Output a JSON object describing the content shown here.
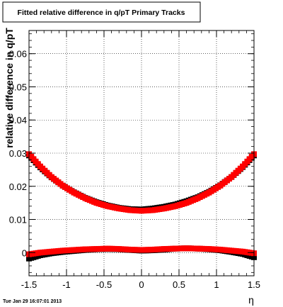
{
  "chart_data": {
    "type": "scatter",
    "title": "Fitted relative difference in q/pT  Primary Tracks",
    "xlabel": "η",
    "ylabel": "relative difference in q/pT",
    "xlim": [
      -1.5,
      1.5
    ],
    "ylim": [
      -0.007,
      0.067
    ],
    "xticks": [
      -1.5,
      -1,
      -0.5,
      0,
      0.5,
      1,
      1.5
    ],
    "xtick_labels": [
      "-1.5",
      "-1",
      "-0.5",
      "0",
      "0.5",
      "1",
      "1.5"
    ],
    "yticks": [
      0,
      0.01,
      0.02,
      0.03,
      0.04,
      0.05,
      0.06
    ],
    "ytick_labels": [
      "0",
      "0.01",
      "0.02",
      "0.03",
      "0.04",
      "0.05",
      "0.06"
    ],
    "grid": true,
    "legend": "none",
    "series": [
      {
        "color": "#000000",
        "marker": "square",
        "x": [
          -1.5,
          -1.35,
          -1.2,
          -1.05,
          -0.9,
          -0.75,
          -0.6,
          -0.45,
          -0.3,
          -0.15,
          0,
          0.15,
          0.3,
          0.45,
          0.6,
          0.75,
          0.9,
          1.05,
          1.2,
          1.35,
          1.5
        ],
        "y": [
          0.0293,
          0.0257,
          0.0227,
          0.0202,
          0.0182,
          0.0165,
          0.0152,
          0.0142,
          0.0135,
          0.0131,
          0.013,
          0.0133,
          0.0138,
          0.0145,
          0.0155,
          0.0167,
          0.0183,
          0.0203,
          0.0228,
          0.0258,
          0.0293
        ]
      },
      {
        "color": "#ff0000",
        "marker": "square",
        "x": [
          -1.5,
          -1.35,
          -1.2,
          -1.05,
          -0.9,
          -0.75,
          -0.6,
          -0.45,
          -0.3,
          -0.15,
          0,
          0.15,
          0.3,
          0.45,
          0.6,
          0.75,
          0.9,
          1.05,
          1.2,
          1.35,
          1.5
        ],
        "y": [
          0.0297,
          0.026,
          0.0228,
          0.0202,
          0.0181,
          0.0164,
          0.015,
          0.014,
          0.0133,
          0.0128,
          0.0126,
          0.0128,
          0.0133,
          0.014,
          0.015,
          0.0164,
          0.0181,
          0.0202,
          0.0228,
          0.026,
          0.0297
        ]
      },
      {
        "color": "#000000",
        "marker": "square",
        "x": [
          -1.5,
          -1.35,
          -1.2,
          -1.05,
          -0.9,
          -0.75,
          -0.6,
          -0.45,
          -0.3,
          -0.15,
          0,
          0.15,
          0.3,
          0.45,
          0.6,
          0.75,
          0.9,
          1.05,
          1.2,
          1.35,
          1.5
        ],
        "y": [
          -0.0018,
          -0.0008,
          -0.0002,
          0.0002,
          0.0005,
          0.0008,
          0.001,
          0.0011,
          0.001,
          0.0008,
          0.0006,
          0.0007,
          0.0009,
          0.0012,
          0.0013,
          0.0012,
          0.001,
          0.0007,
          0.0002,
          -0.0004,
          -0.0014
        ]
      },
      {
        "color": "#ff0000",
        "marker": "square",
        "x": [
          -1.5,
          -1.35,
          -1.2,
          -1.05,
          -0.9,
          -0.75,
          -0.6,
          -0.45,
          -0.3,
          -0.15,
          0,
          0.15,
          0.3,
          0.45,
          0.6,
          0.75,
          0.9,
          1.05,
          1.2,
          1.35,
          1.5
        ],
        "y": [
          -0.0005,
          0.0,
          0.0003,
          0.0006,
          0.0008,
          0.001,
          0.0011,
          0.0012,
          0.0011,
          0.0009,
          0.0008,
          0.0009,
          0.0011,
          0.0012,
          0.0013,
          0.0012,
          0.0011,
          0.0009,
          0.0006,
          0.0003,
          -0.0002
        ]
      }
    ]
  },
  "footer": {
    "timestamp": "Tue Jan 29 16:07:01 2013"
  }
}
